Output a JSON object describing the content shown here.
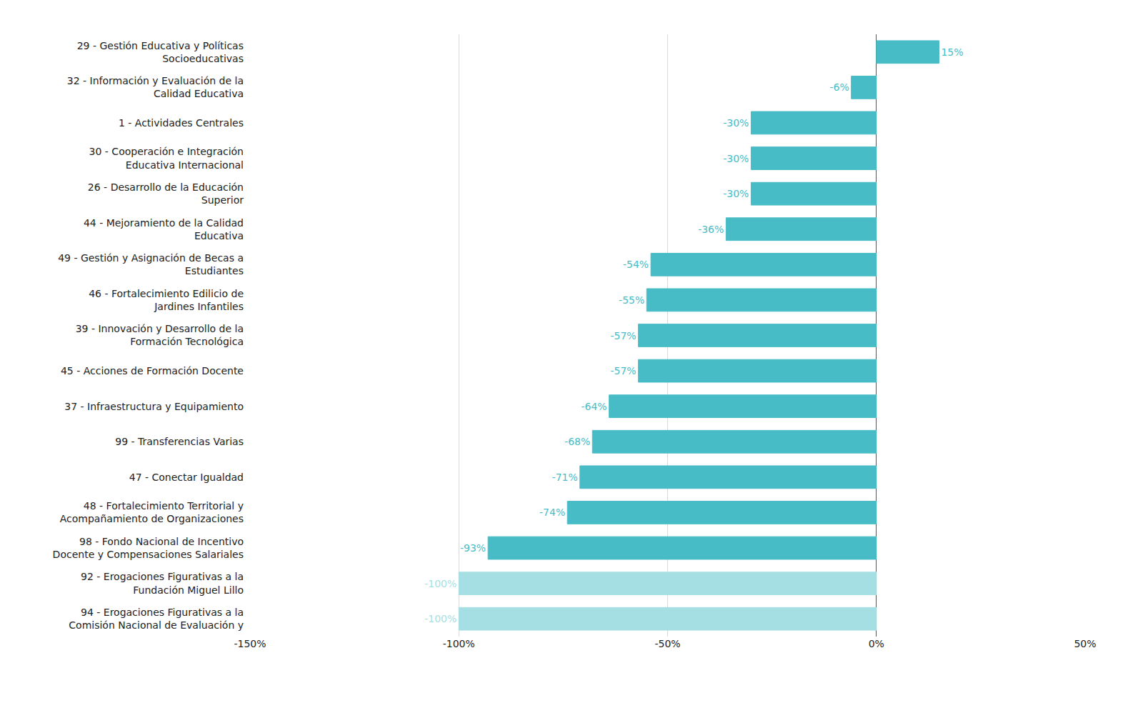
{
  "chart_data": {
    "type": "bar",
    "orientation": "horizontal",
    "categories": [
      "29 - Gestión Educativa y Políticas\nSocioeducativas",
      "32 - Información y Evaluación de la\nCalidad Educativa",
      "1 - Actividades Centrales",
      "30 - Cooperación e Integración\nEducativa Internacional",
      "26 - Desarrollo de la Educación\nSuperior",
      "44 - Mejoramiento de la Calidad\nEducativa",
      "49 - Gestión y Asignación de Becas a\nEstudiantes",
      "46 - Fortalecimiento Edilicio de\nJardines Infantiles",
      "39 - Innovación y Desarrollo de la\nFormación Tecnológica",
      "45 - Acciones de Formación Docente",
      "37 - Infraestructura y Equipamiento",
      "99 - Transferencias Varias",
      "47 - Conectar Igualdad",
      "48 - Fortalecimiento Territorial y\nAcompañamiento de Organizaciones",
      "98 - Fondo Nacional de Incentivo\nDocente y Compensaciones Salariales",
      "92 - Erogaciones Figurativas a la\nFundación Miguel Lillo",
      "94 - Erogaciones Figurativas a la\nComisión Nacional de Evaluación y"
    ],
    "values": [
      15,
      -6,
      -30,
      -30,
      -30,
      -36,
      -54,
      -55,
      -57,
      -57,
      -64,
      -68,
      -71,
      -74,
      -93,
      -100,
      -100
    ],
    "value_labels": [
      "15%",
      "-6%",
      "-30%",
      "-30%",
      "-30%",
      "-36%",
      "-54%",
      "-55%",
      "-57%",
      "-57%",
      "-64%",
      "-68%",
      "-71%",
      "-74%",
      "-93%",
      "-100%",
      "-100%"
    ],
    "data_labels": true,
    "colors": [
      "#47bcc6",
      "#47bcc6",
      "#47bcc6",
      "#47bcc6",
      "#47bcc6",
      "#47bcc6",
      "#47bcc6",
      "#47bcc6",
      "#47bcc6",
      "#47bcc6",
      "#47bcc6",
      "#47bcc6",
      "#47bcc6",
      "#47bcc6",
      "#47bcc6",
      "#a6dfe3",
      "#a6dfe3"
    ],
    "xlim": [
      -150,
      50
    ],
    "xticks": [
      {
        "value": -150,
        "label": "-150%"
      },
      {
        "value": -100,
        "label": "-100%"
      },
      {
        "value": -50,
        "label": "-50%"
      },
      {
        "value": 0,
        "label": "0%"
      },
      {
        "value": 50,
        "label": "50%"
      }
    ],
    "grid": true
  }
}
